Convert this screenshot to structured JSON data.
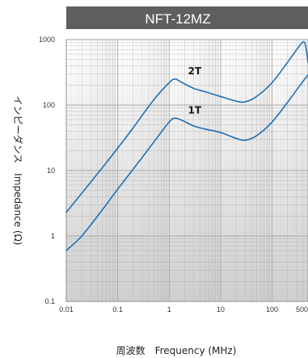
{
  "chart_data": {
    "type": "line",
    "title": "NFT-12MZ",
    "xlabel": "周波数　Frequency (MHz)",
    "ylabel": "インピーダンス　Impedance (Ω)",
    "x_scale": "log",
    "y_scale": "log",
    "xlim": [
      0.01,
      500
    ],
    "ylim": [
      0.1,
      1000
    ],
    "x_ticks": [
      "0.01",
      "0.1",
      "1",
      "10",
      "100",
      "500"
    ],
    "y_ticks": [
      "0.1",
      "1",
      "10",
      "100",
      "1000"
    ],
    "grid": true,
    "series": [
      {
        "name": "2T",
        "color": "#1f6fb8",
        "points": [
          [
            0.01,
            2.3
          ],
          [
            0.02,
            4.5
          ],
          [
            0.05,
            11
          ],
          [
            0.1,
            22
          ],
          [
            0.2,
            45
          ],
          [
            0.5,
            120
          ],
          [
            1,
            220
          ],
          [
            1.3,
            250
          ],
          [
            1.7,
            225
          ],
          [
            3,
            180
          ],
          [
            5,
            160
          ],
          [
            10,
            135
          ],
          [
            20,
            115
          ],
          [
            30,
            112
          ],
          [
            50,
            135
          ],
          [
            100,
            220
          ],
          [
            200,
            450
          ],
          [
            300,
            700
          ],
          [
            400,
            920
          ],
          [
            450,
            800
          ],
          [
            500,
            450
          ]
        ]
      },
      {
        "name": "1T",
        "color": "#1f6fb8",
        "points": [
          [
            0.01,
            0.6
          ],
          [
            0.02,
            1.0
          ],
          [
            0.05,
            2.5
          ],
          [
            0.1,
            5.2
          ],
          [
            0.2,
            10.5
          ],
          [
            0.5,
            27
          ],
          [
            1,
            55
          ],
          [
            1.3,
            63
          ],
          [
            1.8,
            58
          ],
          [
            3,
            48
          ],
          [
            5,
            43
          ],
          [
            10,
            38
          ],
          [
            20,
            31
          ],
          [
            30,
            29
          ],
          [
            50,
            34
          ],
          [
            100,
            55
          ],
          [
            200,
            110
          ],
          [
            300,
            170
          ],
          [
            400,
            230
          ],
          [
            500,
            290
          ]
        ]
      }
    ]
  }
}
